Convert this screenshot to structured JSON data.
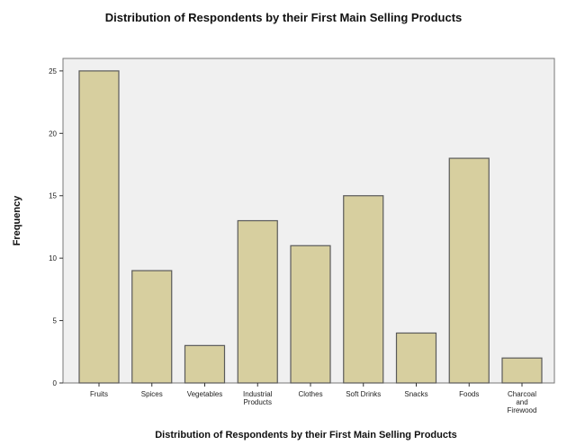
{
  "chart_data": {
    "type": "bar",
    "title": "Distribution of Respondents by their First Main Selling Products",
    "xlabel": "Distribution of Respondents by their First Main Selling Products",
    "ylabel": "Frequency",
    "categories": [
      "Fruits",
      "Spices",
      "Vegetables",
      "Industrial Products",
      "Clothes",
      "Soft Drinks",
      "Snacks",
      "Foods",
      "Charcoal and Firewood"
    ],
    "category_lines": [
      [
        "Fruits"
      ],
      [
        "Spices"
      ],
      [
        "Vegetables"
      ],
      [
        "Industrial",
        "Products"
      ],
      [
        "Clothes"
      ],
      [
        "Soft Drinks"
      ],
      [
        "Snacks"
      ],
      [
        "Foods"
      ],
      [
        "Charcoal",
        "and",
        "Firewood"
      ]
    ],
    "values": [
      25,
      9,
      3,
      13,
      11,
      15,
      4,
      18,
      2
    ],
    "ylim": [
      0,
      26
    ],
    "yticks": [
      0,
      5,
      10,
      15,
      20,
      25
    ],
    "grid": false,
    "colors": {
      "bar_fill": "#d7cf9f",
      "bar_stroke": "#5a5a5a",
      "plot_bg": "#f0f0f0",
      "frame": "#777777"
    }
  }
}
